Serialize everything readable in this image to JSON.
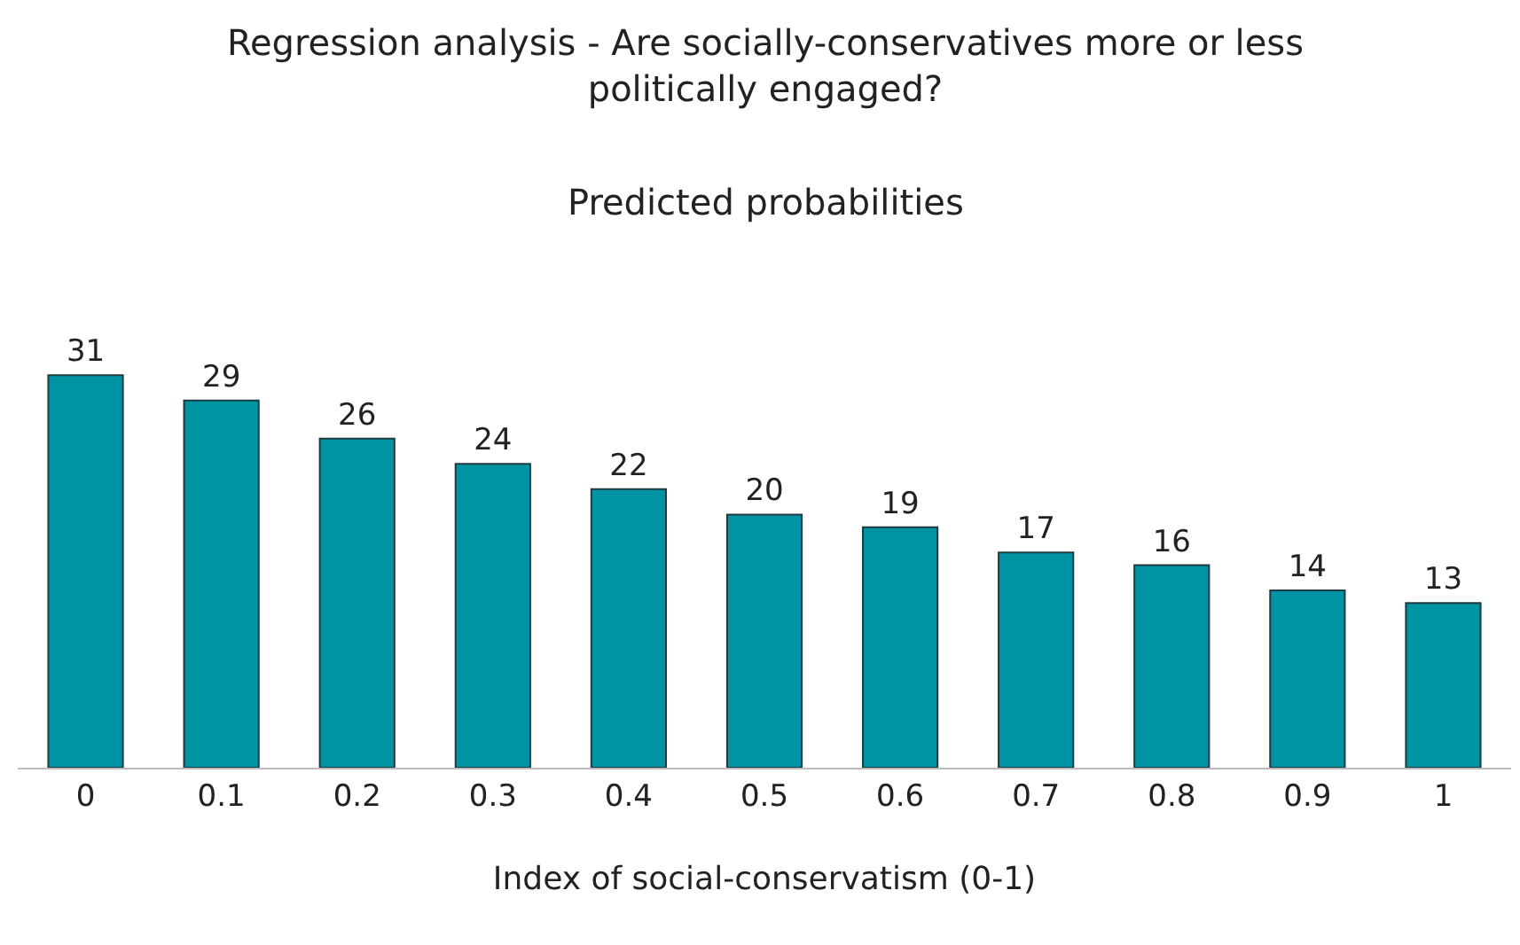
{
  "chart_data": {
    "type": "bar",
    "title": "Regression analysis - Are socially-conservatives more or less politically engaged?",
    "subtitle": "Predicted probabilities",
    "xlabel": "Index of social-conservatism (0-1)",
    "categories": [
      "0",
      "0.1",
      "0.2",
      "0.3",
      "0.4",
      "0.5",
      "0.6",
      "0.7",
      "0.8",
      "0.9",
      "1"
    ],
    "values": [
      31,
      29,
      26,
      24,
      22,
      20,
      19,
      17,
      16,
      14,
      13
    ],
    "color": "#0093a3",
    "data_labels": true
  }
}
